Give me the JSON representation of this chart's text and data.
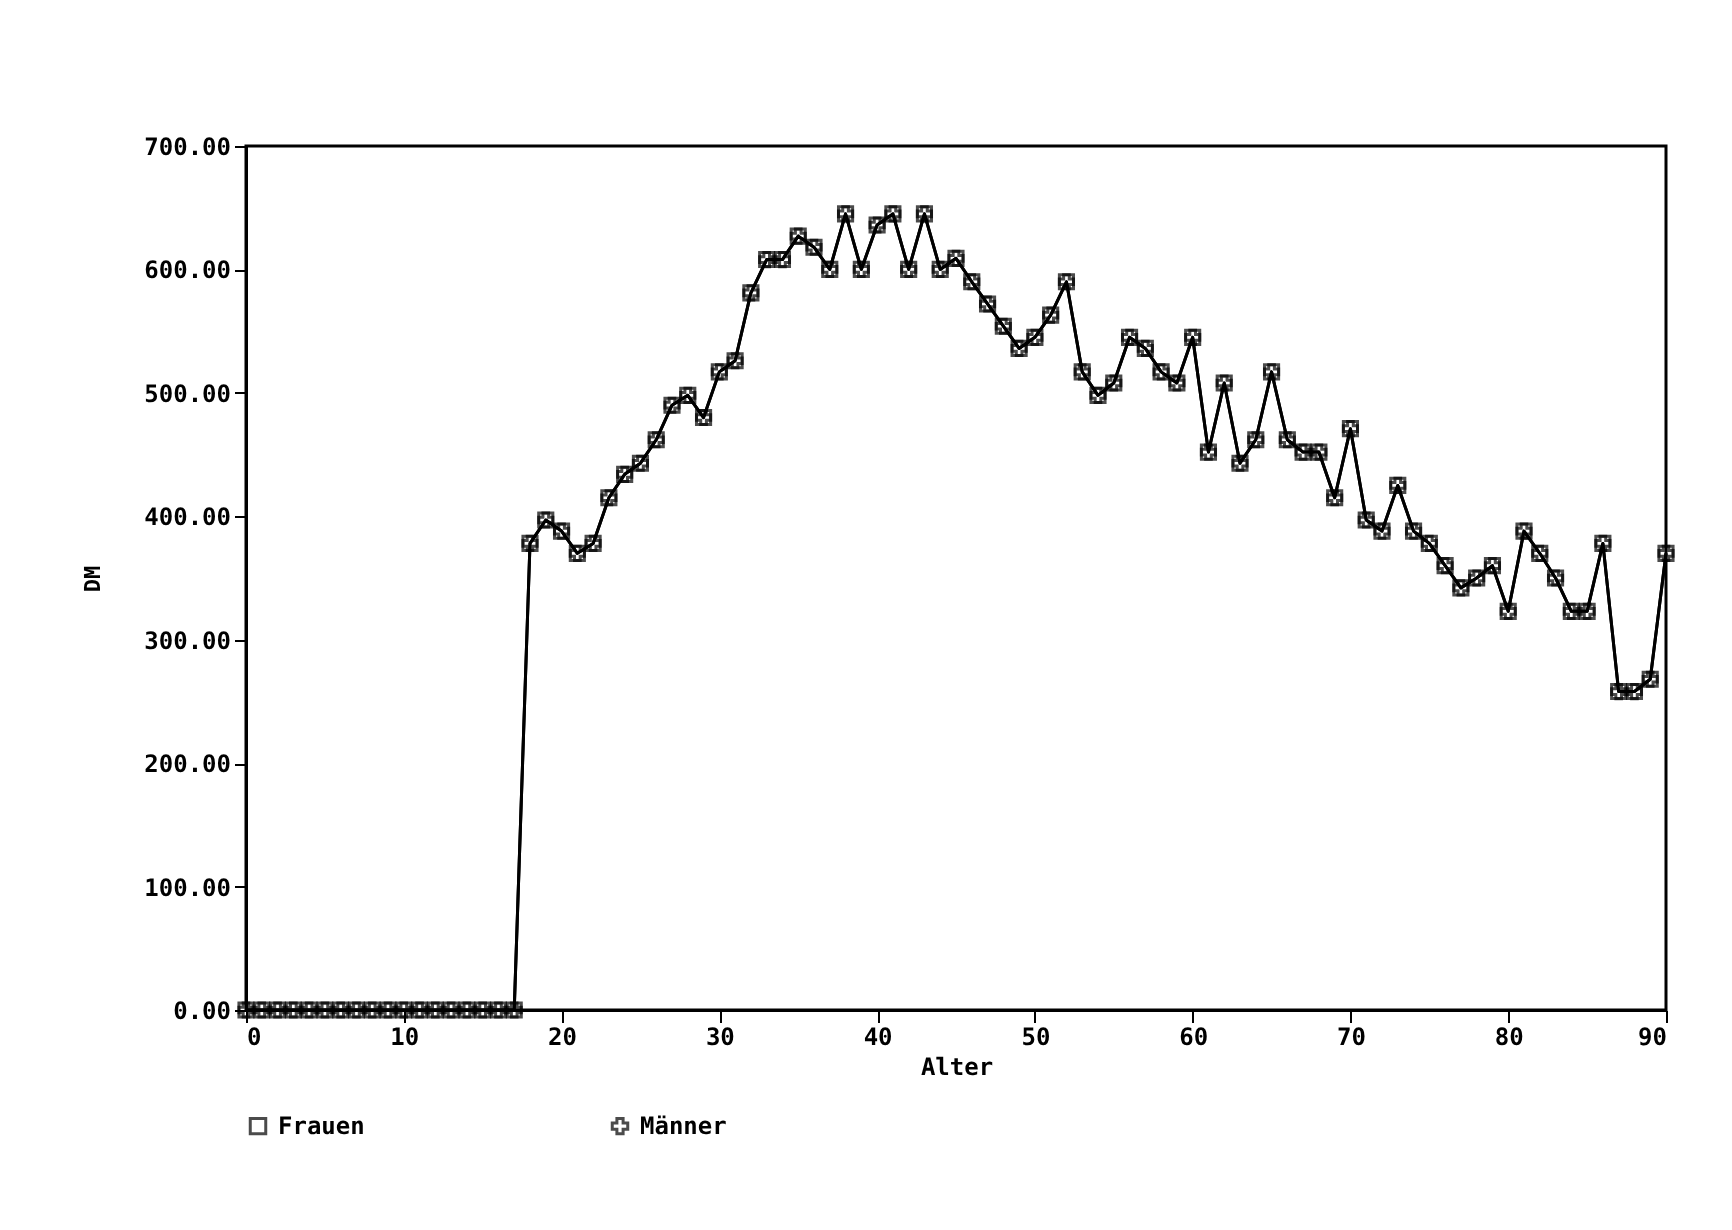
{
  "chart_data": {
    "type": "line",
    "xlabel": "Alter",
    "ylabel": "DM",
    "x": [
      0,
      1,
      2,
      3,
      4,
      5,
      6,
      7,
      8,
      9,
      10,
      11,
      12,
      13,
      14,
      15,
      16,
      17,
      18,
      19,
      20,
      21,
      22,
      23,
      24,
      25,
      26,
      27,
      28,
      29,
      30,
      31,
      32,
      33,
      34,
      35,
      36,
      37,
      38,
      39,
      40,
      41,
      42,
      43,
      44,
      45,
      46,
      47,
      48,
      49,
      50,
      51,
      52,
      53,
      54,
      55,
      56,
      57,
      58,
      59,
      60,
      61,
      62,
      63,
      64,
      65,
      66,
      67,
      68,
      69,
      70,
      71,
      72,
      73,
      74,
      75,
      76,
      77,
      78,
      79,
      80,
      81,
      82,
      83,
      84,
      85,
      86,
      87,
      88,
      89,
      90
    ],
    "series": [
      {
        "name": "Frauen",
        "color": "#000000",
        "marker": "square",
        "values": [
          0,
          0,
          0,
          0,
          0,
          0,
          0,
          0,
          0,
          0,
          0,
          0,
          0,
          0,
          0,
          0,
          0,
          0,
          378,
          397,
          388,
          370,
          378,
          415,
          434,
          443,
          462,
          490,
          498,
          480,
          517,
          526,
          581,
          608,
          608,
          627,
          618,
          600,
          645,
          600,
          636,
          645,
          600,
          645,
          600,
          609,
          590,
          572,
          554,
          536,
          545,
          563,
          590,
          517,
          498,
          508,
          545,
          536,
          517,
          508,
          545,
          452,
          508,
          443,
          462,
          517,
          462,
          452,
          452,
          415,
          471,
          397,
          388,
          425,
          388,
          378,
          360,
          342,
          350,
          360,
          323,
          388,
          370,
          350,
          323,
          323,
          378,
          258,
          258,
          268,
          370
        ]
      },
      {
        "name": "Männer",
        "color": "#000000",
        "marker": "cross",
        "values": [
          0,
          0,
          0,
          0,
          0,
          0,
          0,
          0,
          0,
          0,
          0,
          0,
          0,
          0,
          0,
          0,
          0,
          0,
          378,
          397,
          388,
          370,
          378,
          415,
          434,
          443,
          462,
          490,
          498,
          480,
          517,
          526,
          581,
          608,
          608,
          627,
          618,
          600,
          645,
          600,
          636,
          645,
          600,
          645,
          600,
          609,
          590,
          572,
          554,
          536,
          545,
          563,
          590,
          517,
          498,
          508,
          545,
          536,
          517,
          508,
          545,
          452,
          508,
          443,
          462,
          517,
          462,
          452,
          452,
          415,
          471,
          397,
          388,
          425,
          388,
          378,
          360,
          342,
          350,
          360,
          323,
          388,
          370,
          350,
          323,
          323,
          378,
          258,
          258,
          268,
          370
        ]
      }
    ],
    "xlim": [
      0,
      90
    ],
    "xticks": [
      0,
      10,
      20,
      30,
      40,
      50,
      60,
      70,
      80,
      90
    ],
    "ylim": [
      0,
      700
    ],
    "yticks": [
      {
        "value": 0,
        "label": "0.00"
      },
      {
        "value": 100,
        "label": "100.00"
      },
      {
        "value": 200,
        "label": "200.00"
      },
      {
        "value": 300,
        "label": "300.00"
      },
      {
        "value": 400,
        "label": "400.00"
      },
      {
        "value": 500,
        "label": "500.00"
      },
      {
        "value": 600,
        "label": "600.00"
      },
      {
        "value": 700,
        "label": "700.00"
      }
    ],
    "grid": false,
    "legend": "bottom",
    "line_style": "solid"
  }
}
